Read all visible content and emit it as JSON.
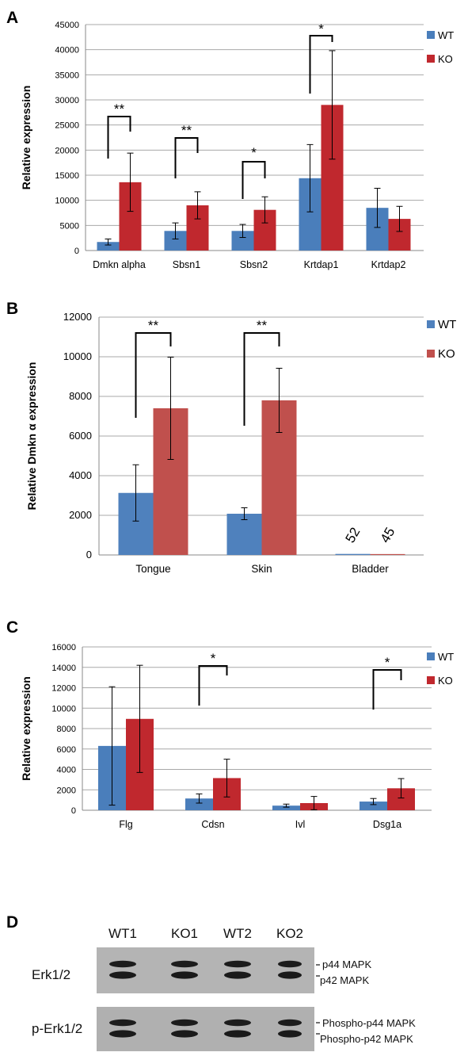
{
  "panel_letters": [
    "A",
    "B",
    "C",
    "D"
  ],
  "colors": {
    "wt_dark": "#4a7ebb",
    "ko_dark": "#c0282e",
    "wt_b": "#4f81bd",
    "ko_b": "#c0504d"
  },
  "chart_data": [
    {
      "type": "bar",
      "panel": "A",
      "ylabel": "Relative expression",
      "ylim": [
        0,
        45000
      ],
      "yticks": [
        0,
        5000,
        10000,
        15000,
        20000,
        25000,
        30000,
        35000,
        40000,
        45000
      ],
      "categories": [
        "Dmkn alpha",
        "Sbsn1",
        "Sbsn2",
        "Krtdap1",
        "Krtdap2"
      ],
      "series": [
        {
          "name": "WT",
          "values": [
            1700,
            3900,
            3900,
            14400,
            8500
          ],
          "err": [
            600,
            1600,
            1300,
            6700,
            3900
          ]
        },
        {
          "name": "KO",
          "values": [
            13600,
            9000,
            8100,
            29000,
            6300
          ],
          "err": [
            5800,
            2700,
            2600,
            10800,
            2500
          ]
        }
      ],
      "significance": [
        {
          "category": "Dmkn alpha",
          "label": "**"
        },
        {
          "category": "Sbsn1",
          "label": "**"
        },
        {
          "category": "Sbsn2",
          "label": "*"
        },
        {
          "category": "Krtdap1",
          "label": "*"
        }
      ],
      "legend": "top-right",
      "grid": true
    },
    {
      "type": "bar",
      "panel": "B",
      "ylabel": "Relative Dmkn α expression",
      "ylim": [
        0,
        12000
      ],
      "yticks": [
        0,
        2000,
        4000,
        6000,
        8000,
        10000,
        12000
      ],
      "categories": [
        "Tongue",
        "Skin",
        "Bladder"
      ],
      "series": [
        {
          "name": "WT",
          "values": [
            3130,
            2080,
            52
          ],
          "err": [
            1420,
            300,
            0
          ]
        },
        {
          "name": "KO",
          "values": [
            7400,
            7800,
            45
          ],
          "err": [
            2580,
            1620,
            0
          ]
        }
      ],
      "data_labels": [
        "52",
        "45"
      ],
      "significance": [
        {
          "category": "Tongue",
          "label": "**"
        },
        {
          "category": "Skin",
          "label": "**"
        }
      ],
      "legend": "top-right",
      "grid": true
    },
    {
      "type": "bar",
      "panel": "C",
      "ylabel": "Relative expression",
      "ylim": [
        0,
        16000
      ],
      "yticks": [
        0,
        2000,
        4000,
        6000,
        8000,
        10000,
        12000,
        14000,
        16000
      ],
      "categories": [
        "Flg",
        "Cdsn",
        "Ivl",
        "Dsg1a"
      ],
      "series": [
        {
          "name": "WT",
          "values": [
            6300,
            1150,
            450,
            850
          ],
          "err": [
            5800,
            450,
            150,
            300
          ]
        },
        {
          "name": "KO",
          "values": [
            8950,
            3150,
            700,
            2150
          ],
          "err": [
            5250,
            1850,
            650,
            950
          ]
        }
      ],
      "significance": [
        {
          "category": "Cdsn",
          "label": "*"
        },
        {
          "category": "Dsg1a",
          "label": "*"
        }
      ],
      "legend": "top-right",
      "grid": true
    }
  ],
  "blot": {
    "columns": [
      "WT1",
      "KO1",
      "WT2",
      "KO2"
    ],
    "rows": [
      {
        "label": "Erk1/2",
        "bands": [
          "p44 MAPK",
          "p42 MAPK"
        ]
      },
      {
        "label": "p-Erk1/2",
        "bands": [
          "Phospho-p44 MAPK",
          "Phospho-p42 MAPK"
        ]
      }
    ]
  }
}
